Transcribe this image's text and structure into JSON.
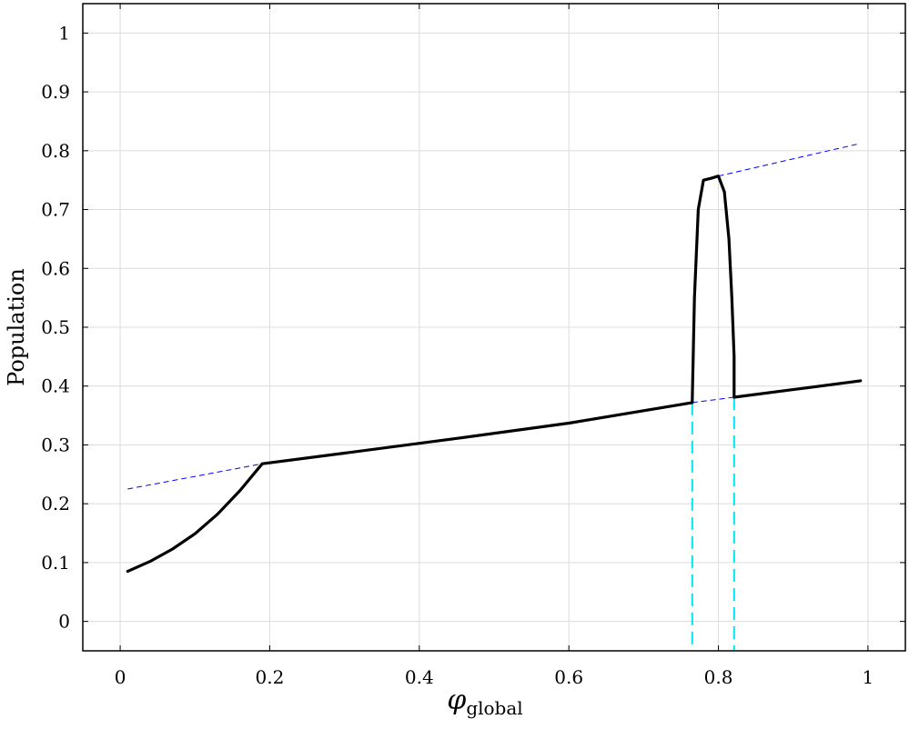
{
  "chart_data": {
    "type": "line",
    "title": "",
    "xlabel": {
      "symbol": "φ",
      "subscript": "global"
    },
    "ylabel": "Population",
    "xlim": [
      -0.05,
      1.05
    ],
    "ylim": [
      -0.05,
      1.05
    ],
    "xticks": [
      0,
      0.2,
      0.4,
      0.6,
      0.8,
      1
    ],
    "xtick_labels": [
      "0",
      "0.2",
      "0.4",
      "0.6",
      "0.8",
      "1"
    ],
    "yticks": [
      0,
      0.1,
      0.2,
      0.3,
      0.4,
      0.5,
      0.6,
      0.7,
      0.8,
      0.9,
      1
    ],
    "ytick_labels": [
      "0",
      "0.1",
      "0.2",
      "0.3",
      "0.4",
      "0.5",
      "0.6",
      "0.7",
      "0.8",
      "0.9",
      "1"
    ],
    "grid": true,
    "series": [
      {
        "style": "solid-black-thick",
        "color": "#000000",
        "x": [
          0.01,
          0.04,
          0.07,
          0.1,
          0.13,
          0.16,
          0.19,
          0.3,
          0.45,
          0.6,
          0.765,
          0.765,
          0.768,
          0.773,
          0.78,
          0.79,
          0.8,
          0.808,
          0.814,
          0.818,
          0.821,
          0.821,
          0.9,
          0.99
        ],
        "y": [
          0.085,
          0.102,
          0.123,
          0.149,
          0.182,
          0.222,
          0.268,
          0.286,
          0.311,
          0.337,
          0.372,
          0.375,
          0.55,
          0.7,
          0.75,
          0.753,
          0.757,
          0.73,
          0.65,
          0.55,
          0.45,
          0.381,
          0.394,
          0.409
        ]
      },
      {
        "style": "dashed-blue-thin",
        "color": "#0000ff",
        "x": [
          0.01,
          0.19
        ],
        "y": [
          0.225,
          0.268
        ]
      },
      {
        "style": "dashed-blue-thin",
        "color": "#0000ff",
        "x": [
          0.765,
          0.821
        ],
        "y": [
          0.372,
          0.381
        ]
      },
      {
        "style": "dashed-blue-thin",
        "color": "#0000ff",
        "x": [
          0.8,
          0.985
        ],
        "y": [
          0.757,
          0.811
        ]
      },
      {
        "style": "dashed-cyan",
        "color": "#00e5ee",
        "x": [
          0.765,
          0.765
        ],
        "y": [
          0.372,
          -0.05
        ]
      },
      {
        "style": "dashed-cyan",
        "color": "#00e5ee",
        "x": [
          0.821,
          0.821
        ],
        "y": [
          0.381,
          -0.05
        ]
      }
    ]
  }
}
